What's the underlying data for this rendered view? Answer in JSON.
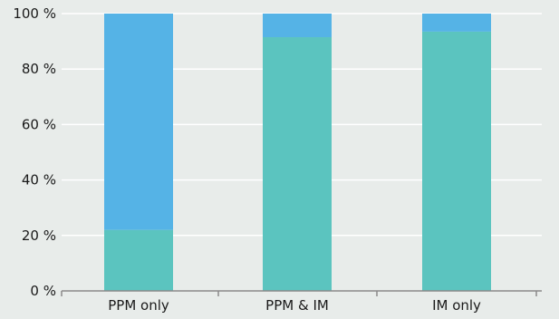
{
  "chart_data": {
    "type": "bar",
    "stacked": true,
    "percent": true,
    "categories": [
      "PPM only",
      "PPM & IM",
      "IM only"
    ],
    "series": [
      {
        "values": [
          22,
          91.5,
          93.5
        ],
        "color": "#5bc4bf"
      },
      {
        "values": [
          78,
          8.5,
          6.5
        ],
        "color": "#55b3e6"
      }
    ],
    "y_ticks": [
      "0 %",
      "20 %",
      "40 %",
      "60 %",
      "80 %",
      "100 %"
    ],
    "ylim": [
      0,
      100
    ],
    "grid": true,
    "legend": "none",
    "title": "",
    "xlabel": "",
    "ylabel": ""
  }
}
